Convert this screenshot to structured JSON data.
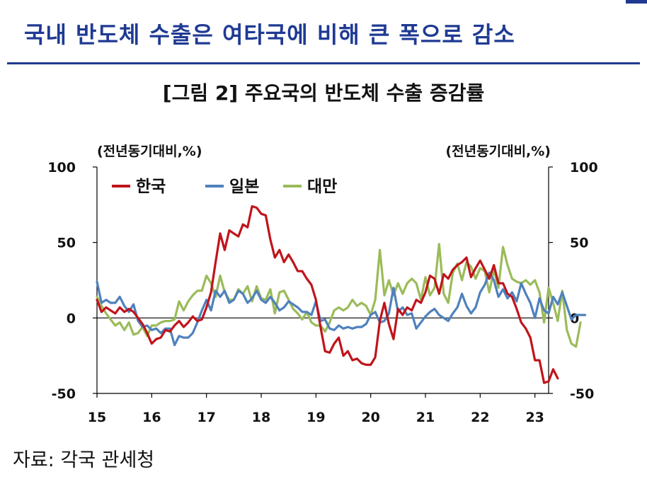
{
  "header": {
    "headline": "국내 반도체 수출은 여타국에 비해 큰 폭으로 감소",
    "figure_title": "[그림 2] 주요국의 반도체 수출 증감률"
  },
  "footer": {
    "source": "자료: 각국 관세청"
  },
  "colors": {
    "headline": "#1f3a93",
    "korea": "#c0141b",
    "japan": "#4f81bd",
    "taiwan": "#9bbb59"
  },
  "chart_data": {
    "type": "line",
    "title": "[그림 2] 주요국의 반도체 수출 증감률",
    "ylabel_left": "(전년동기대비,%)",
    "ylabel_right": "(전년동기대비,%)",
    "ylim": [
      -50,
      100
    ],
    "yticks": [
      -50,
      0,
      50,
      100
    ],
    "ytick_labels": [
      "-50",
      "0",
      "50",
      "100"
    ],
    "xlim": [
      2015.0,
      2023.25
    ],
    "xticks": [
      2015,
      2016,
      2017,
      2018,
      2019,
      2020,
      2021,
      2022,
      2023
    ],
    "xtick_labels": [
      "15",
      "16",
      "17",
      "18",
      "19",
      "20",
      "21",
      "22",
      "23"
    ],
    "grid": false,
    "legend_position": "top-left",
    "series": [
      {
        "name": "한국",
        "color_key": "korea",
        "x_start": 2015.0,
        "x_step": 0.0833333,
        "values": [
          12,
          4,
          7,
          5,
          3,
          7,
          4,
          6,
          4,
          0,
          -4,
          -10,
          -17,
          -14,
          -13,
          -8,
          -9,
          -5,
          -2,
          -6,
          -3,
          1,
          -2,
          -1,
          7,
          17,
          37,
          56,
          45,
          58,
          56,
          54,
          62,
          60,
          74,
          73,
          69,
          68,
          52,
          40,
          45,
          37,
          42,
          37,
          31,
          31,
          26,
          22,
          12,
          -6,
          -22,
          -23,
          -17,
          -13,
          -25,
          -22,
          -28,
          -27,
          -30,
          -31,
          -31,
          -26,
          -2,
          10,
          -4,
          -14,
          6,
          2,
          7,
          5,
          12,
          10,
          17,
          28,
          26,
          16,
          29,
          26,
          32,
          35,
          37,
          40,
          27,
          33,
          38,
          32,
          26,
          35,
          23,
          23,
          16,
          14,
          6,
          -3,
          -7,
          -13,
          -28,
          -28,
          -43,
          -42,
          -34,
          -40
        ]
      },
      {
        "name": "일본",
        "color_key": "japan",
        "x_start": 2015.0,
        "x_step": 0.0833333,
        "values": [
          24,
          10,
          12,
          10,
          10,
          14,
          8,
          4,
          9,
          -2,
          -6,
          -5,
          -8,
          -7,
          -10,
          -7,
          -7,
          -18,
          -12,
          -13,
          -13,
          -10,
          -3,
          5,
          12,
          5,
          18,
          14,
          18,
          10,
          12,
          18,
          16,
          10,
          13,
          18,
          12,
          10,
          14,
          10,
          5,
          7,
          11,
          9,
          7,
          4,
          4,
          2,
          11,
          -2,
          -1,
          -7,
          -8,
          -5,
          -7,
          -6,
          -7,
          -6,
          -6,
          -4,
          2,
          4,
          -3,
          -2,
          3,
          20,
          4,
          7,
          2,
          3,
          -7,
          -3,
          1,
          4,
          6,
          2,
          0,
          -2,
          3,
          7,
          16,
          8,
          3,
          7,
          17,
          22,
          30,
          25,
          14,
          19,
          13,
          17,
          11,
          23,
          16,
          10,
          0,
          13,
          5,
          3,
          14,
          9,
          17,
          8,
          -1,
          2,
          2,
          2
        ]
      },
      {
        "name": "대만",
        "color_key": "taiwan",
        "x_start": 2015.0,
        "x_step": 0.0833333,
        "values": [
          14,
          8,
          3,
          -1,
          -5,
          -3,
          -8,
          -3,
          -11,
          -10,
          -6,
          -12,
          -5,
          -5,
          -3,
          -2,
          -2,
          -1,
          11,
          5,
          11,
          15,
          18,
          18,
          28,
          23,
          14,
          28,
          17,
          12,
          12,
          19,
          16,
          21,
          11,
          21,
          13,
          12,
          19,
          3,
          17,
          18,
          12,
          6,
          3,
          -1,
          4,
          -3,
          -5,
          -5,
          -9,
          -3,
          5,
          7,
          5,
          7,
          12,
          8,
          10,
          8,
          2,
          12,
          45,
          15,
          25,
          15,
          23,
          16,
          23,
          26,
          23,
          12,
          27,
          15,
          20,
          49,
          16,
          10,
          30,
          36,
          25,
          37,
          34,
          26,
          33,
          31,
          17,
          32,
          20,
          47,
          35,
          26,
          24,
          23,
          25,
          22,
          25,
          17,
          -3,
          20,
          10,
          -2,
          18,
          -8,
          -17,
          -19,
          -3
        ]
      }
    ]
  }
}
